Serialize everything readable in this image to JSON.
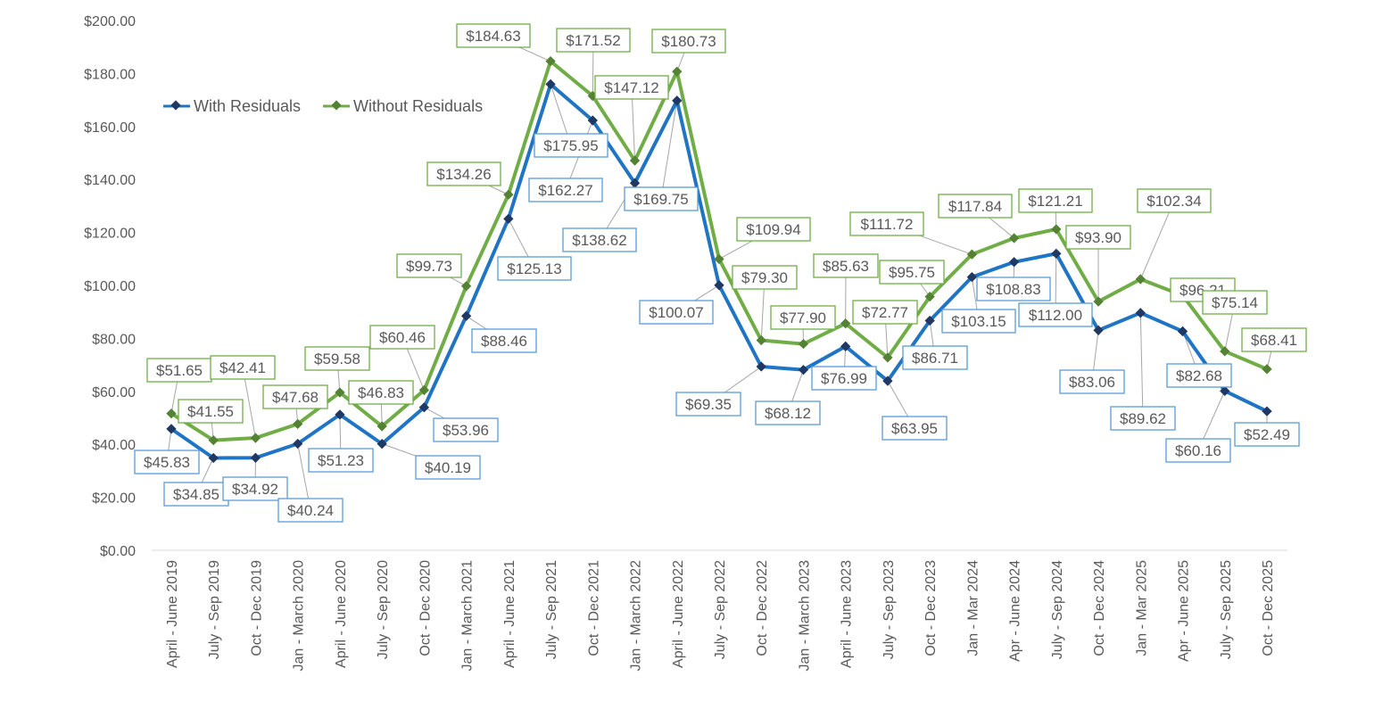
{
  "chart_data": {
    "type": "line",
    "title": "",
    "xlabel": "",
    "ylabel": "",
    "ylim": [
      0,
      200
    ],
    "y_ticks": [
      "$0.00",
      "$20.00",
      "$40.00",
      "$60.00",
      "$80.00",
      "$100.00",
      "$120.00",
      "$140.00",
      "$160.00",
      "$180.00",
      "$200.00"
    ],
    "grid": false,
    "legend_position": "top-left",
    "categories": [
      "April - June 2019",
      "July - Sep 2019",
      "Oct - Dec 2019",
      "Jan - March 2020",
      "April - June 2020",
      "July - Sep 2020",
      "Oct - Dec 2020",
      "Jan - March 2021",
      "April - June 2021",
      "July - Sep 2021",
      "Oct - Dec 2021",
      "Jan - March 2022",
      "April - June 2022",
      "July - Sep 2022",
      "Oct - Dec 2022",
      "Jan - March 2023",
      "April - June 2023",
      "July - Sep 2023",
      "Oct - Dec 2023",
      "Jan - Mar 2024",
      "Apr - June 2024",
      "July - Sep 2024",
      "Oct - Dec 2024",
      "Jan - Mar 2025",
      "Apr - June 2025",
      "July - Sep 2025",
      "Oct - Dec 2025"
    ],
    "series": [
      {
        "name": "With Residuals",
        "color": "#1f74c4",
        "marker_color": "#1f3864",
        "values": [
          45.83,
          34.85,
          34.92,
          40.24,
          51.23,
          40.19,
          53.96,
          88.46,
          125.13,
          175.95,
          162.27,
          138.62,
          169.75,
          100.07,
          69.35,
          68.12,
          76.99,
          63.95,
          86.71,
          103.15,
          108.83,
          112.0,
          83.06,
          89.62,
          82.68,
          60.16,
          52.49
        ]
      },
      {
        "name": "Without Residuals",
        "color": "#70ad47",
        "marker_color": "#548235",
        "values": [
          51.65,
          41.55,
          42.41,
          47.68,
          59.58,
          46.83,
          60.46,
          99.73,
          134.26,
          184.63,
          171.52,
          147.12,
          180.73,
          109.94,
          79.3,
          77.9,
          85.63,
          72.77,
          95.75,
          111.72,
          117.84,
          121.21,
          93.9,
          102.34,
          96.21,
          75.14,
          68.41
        ]
      }
    ]
  }
}
